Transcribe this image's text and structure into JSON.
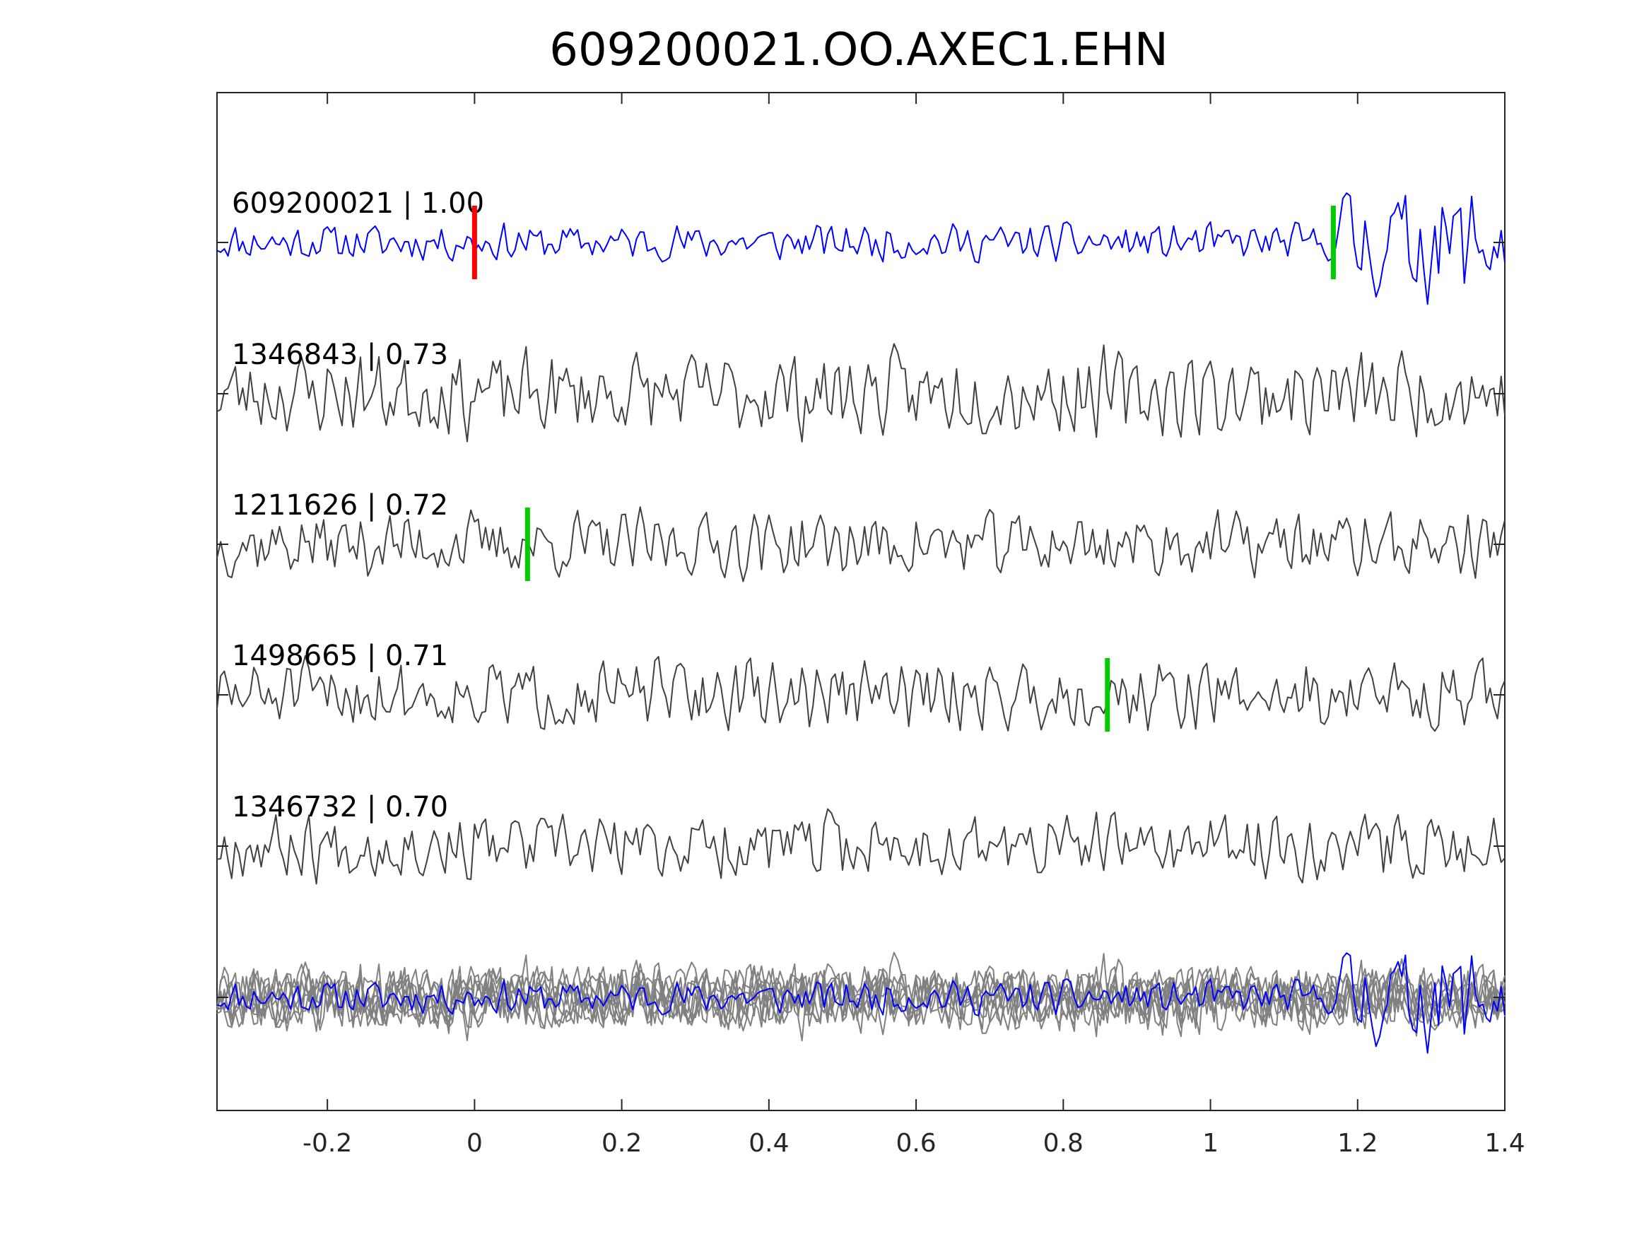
{
  "chart_data": {
    "type": "line",
    "title": "609200021.OO.AXEC1.EHN",
    "xlabel": "",
    "ylabel": "",
    "xlim": [
      -0.35,
      1.4
    ],
    "xticks": [
      -0.2,
      0,
      0.2,
      0.4,
      0.6,
      0.8,
      1,
      1.2,
      1.4
    ],
    "xtick_labels": [
      "-0.2",
      "0",
      "0.2",
      "0.4",
      "0.6",
      "0.8",
      "1",
      "1.2",
      "1.4"
    ],
    "grid": false,
    "y_ticks_labeled": false,
    "traces": [
      {
        "label": "609200021 | 1.00",
        "event_id": "609200021",
        "correlation": 1.0,
        "color": "#0000ff",
        "amplitude": 0.42,
        "seed": 11,
        "emergent_onset": 1.17,
        "markers": [
          {
            "time": 0.0,
            "color": "#ff0000"
          },
          {
            "time": 1.167,
            "color": "#00cc00"
          }
        ]
      },
      {
        "label": "1346843 | 0.73",
        "event_id": "1346843",
        "correlation": 0.73,
        "color": "#404040",
        "amplitude": 0.95,
        "seed": 23,
        "markers": []
      },
      {
        "label": "1211626 | 0.72",
        "event_id": "1211626",
        "correlation": 0.72,
        "color": "#404040",
        "amplitude": 0.75,
        "seed": 37,
        "markers": [
          {
            "time": 0.072,
            "color": "#00cc00"
          }
        ]
      },
      {
        "label": "1498665 | 0.71",
        "event_id": "1498665",
        "correlation": 0.71,
        "color": "#404040",
        "amplitude": 0.8,
        "seed": 51,
        "markers": [
          {
            "time": 0.86,
            "color": "#00cc00"
          }
        ]
      },
      {
        "label": "1346732 | 0.70",
        "event_id": "1346732",
        "correlation": 0.7,
        "color": "#404040",
        "amplitude": 0.75,
        "seed": 67,
        "markers": []
      }
    ],
    "overlay": {
      "reference_color": "#0000ff",
      "others_color": "#808080",
      "others_count": 8
    }
  }
}
